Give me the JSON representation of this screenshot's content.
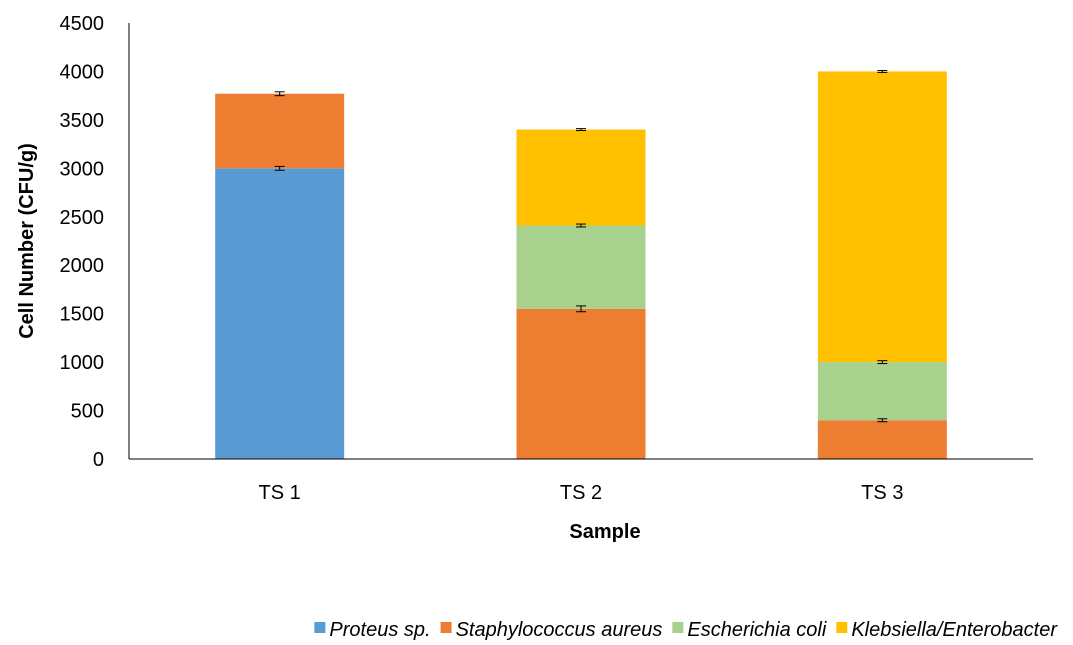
{
  "chart_data": {
    "type": "bar",
    "stacked": true,
    "categories": [
      "TS 1",
      "TS 2",
      "TS 3"
    ],
    "series": [
      {
        "name": "Proteus sp.",
        "color": "#5B9BD5",
        "values": [
          3000,
          0,
          0
        ],
        "errors": [
          20,
          0,
          0
        ]
      },
      {
        "name": "Staphylococcus aureus",
        "color": "#ED7D31",
        "values": [
          770,
          1550,
          400
        ],
        "errors": [
          20,
          30,
          15
        ]
      },
      {
        "name": "Escherichia coli",
        "color": "#A9D18E",
        "values": [
          0,
          860,
          600
        ],
        "errors": [
          0,
          15,
          15
        ]
      },
      {
        "name": "Klebsiella/Enterobacter",
        "color": "#FFC000",
        "values": [
          0,
          990,
          3000
        ],
        "errors": [
          0,
          10,
          10
        ]
      }
    ],
    "title": "",
    "xlabel": "Sample",
    "ylabel": "Cell Number (CFU/g)",
    "ylim": [
      0,
      4500
    ],
    "yticks": [
      "0",
      "500",
      "1000",
      "1500",
      "2000",
      "2500",
      "3000",
      "3500",
      "4000",
      "4500"
    ],
    "grid": false,
    "legend_position": "bottom"
  }
}
